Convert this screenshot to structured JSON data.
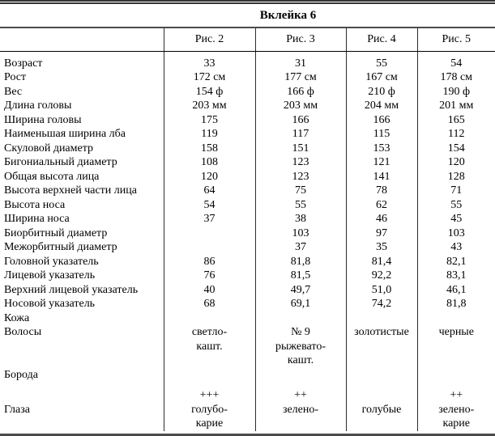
{
  "title": "Вклейка 6",
  "columns": [
    "Рис. 2",
    "Рис. 3",
    "Рис. 4",
    "Рис. 5"
  ],
  "rows": [
    {
      "label": "Возраст",
      "values": [
        "33",
        "31",
        "55",
        "54"
      ]
    },
    {
      "label": "Рост",
      "values": [
        "172 см",
        "177 см",
        "167 см",
        "178 см"
      ]
    },
    {
      "label": "Вес",
      "values": [
        "154 ф",
        "166 ф",
        "210 ф",
        "190 ф"
      ]
    },
    {
      "label": "Длина головы",
      "values": [
        "203 мм",
        "203 мм",
        "204 мм",
        "201 мм"
      ]
    },
    {
      "label": "Ширина головы",
      "values": [
        "175",
        "166",
        "166",
        "165"
      ]
    },
    {
      "label": "Наименьшая ширина лба",
      "values": [
        "119",
        "117",
        "115",
        "112"
      ]
    },
    {
      "label": "Скуловой диаметр",
      "values": [
        "158",
        "151",
        "153",
        "154"
      ]
    },
    {
      "label": "Бигониальный диаметр",
      "values": [
        "108",
        "123",
        "121",
        "120"
      ]
    },
    {
      "label": "Общая высота лица",
      "values": [
        "120",
        "123",
        "141",
        "128"
      ]
    },
    {
      "label": "Высота верхней части лица",
      "values": [
        "64",
        "75",
        "78",
        "71"
      ]
    },
    {
      "label": "Высота носа",
      "values": [
        "54",
        "55",
        "62",
        "55"
      ]
    },
    {
      "label": "Ширина носа",
      "values": [
        "37",
        "38",
        "46",
        "45"
      ]
    },
    {
      "label": "Биорбитный диаметр",
      "values": [
        "",
        "103",
        "97",
        "103"
      ]
    },
    {
      "label": "Межорбитный диаметр",
      "values": [
        "",
        "37",
        "35",
        "43"
      ]
    },
    {
      "label": "Головной указатель",
      "values": [
        "86",
        "81,8",
        "81,4",
        "82,1"
      ]
    },
    {
      "label": "Лицевой указатель",
      "values": [
        "76",
        "81,5",
        "92,2",
        "83,1"
      ]
    },
    {
      "label": "Верхний лицевой указатель",
      "values": [
        "40",
        "49,7",
        "51,0",
        "46,1"
      ]
    },
    {
      "label": "Носовой указатель",
      "values": [
        "68",
        "69,1",
        "74,2",
        "81,8"
      ]
    },
    {
      "label": "Кожа",
      "values": [
        "",
        "",
        "",
        ""
      ]
    },
    {
      "label": "Волосы",
      "values": [
        "светло-\nкашт.",
        "№ 9\nрыжевато-\nкашт.",
        "золотистые",
        "черные"
      ]
    },
    {
      "label": "Борода",
      "values": [
        "",
        "",
        "",
        ""
      ]
    },
    {
      "label": "",
      "values": [
        "+++",
        "++",
        "",
        "++"
      ]
    },
    {
      "label": "Глаза",
      "values": [
        "голубо-\nкарие",
        "зелено-",
        "голубые",
        "зелено-\nкарие"
      ]
    }
  ],
  "colors": {
    "text": "#000000",
    "background": "#ffffff",
    "rule_black": "#333333",
    "rule_gray": "#4a4a4a"
  }
}
